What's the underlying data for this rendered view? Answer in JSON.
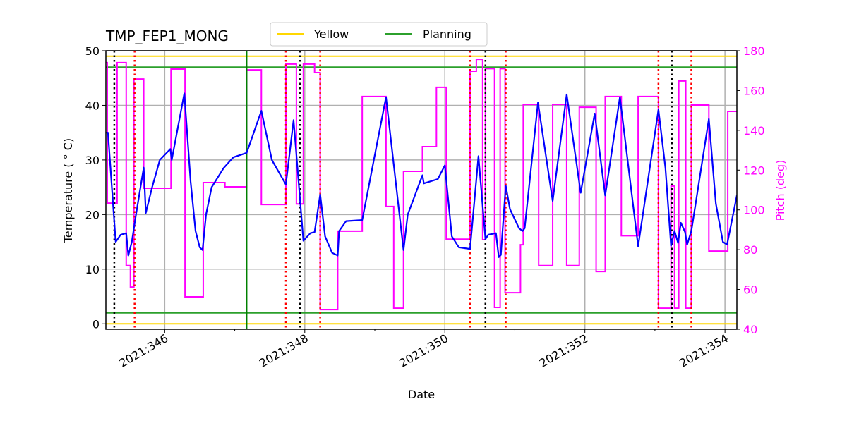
{
  "chart_data": {
    "type": "line",
    "title": "TMP_FEP1_MONG",
    "xlabel": "Date",
    "ylabel": "Temperature ($^\\circ$C)",
    "ylabel_display": "Temperature ( ° C)",
    "y2label": "Pitch (deg)",
    "xlim": [
      345.16,
      354.17
    ],
    "ylim": [
      -1,
      50
    ],
    "y2lim": [
      40,
      180
    ],
    "xticks": [
      346,
      348,
      350,
      352,
      354
    ],
    "xtick_labels": [
      "2021:346",
      "2021:348",
      "2021:350",
      "2021:352",
      "2021:354"
    ],
    "x_minor_ticks": [
      347,
      349,
      351,
      353
    ],
    "yticks": [
      0,
      10,
      20,
      30,
      40,
      50
    ],
    "y2ticks": [
      40,
      60,
      80,
      100,
      120,
      140,
      160,
      180
    ],
    "grid": true,
    "legend": {
      "placement": "top-center",
      "entries": [
        {
          "name": "Yellow",
          "color": "#ffd700"
        },
        {
          "name": "Planning",
          "color": "#2ca02c"
        }
      ]
    },
    "colors": {
      "temperature": "#0000ff",
      "pitch": "#ff00ff",
      "yellow": "#ffd700",
      "planning": "#2ca02c",
      "black_marker": "#000000",
      "red_marker": "#ff0000",
      "y2axis": "#ff00ff"
    },
    "limits": {
      "yellow": [
        49,
        0
      ],
      "planning": [
        47,
        2
      ]
    },
    "planning_vline": [
      347.17
    ],
    "black_dotted_vlines": [
      345.28,
      347.93,
      350.58,
      353.24
    ],
    "red_dotted_vlines": [
      345.57,
      347.73,
      348.22,
      350.36,
      350.87,
      353.05,
      353.52
    ],
    "series": [
      {
        "key": "temperature",
        "axis": "left",
        "points": [
          [
            345.16,
            35
          ],
          [
            345.19,
            35
          ],
          [
            345.3,
            15
          ],
          [
            345.37,
            16.3
          ],
          [
            345.45,
            16.6
          ],
          [
            345.48,
            12.5
          ],
          [
            345.53,
            15
          ],
          [
            345.59,
            20
          ],
          [
            345.7,
            28.6
          ],
          [
            345.73,
            20.3
          ],
          [
            345.82,
            25
          ],
          [
            345.93,
            30
          ],
          [
            346.08,
            32
          ],
          [
            346.1,
            30
          ],
          [
            346.28,
            42.2
          ],
          [
            346.37,
            26
          ],
          [
            346.44,
            17
          ],
          [
            346.5,
            14
          ],
          [
            346.54,
            13.5
          ],
          [
            346.59,
            20
          ],
          [
            346.67,
            25
          ],
          [
            346.84,
            28.5
          ],
          [
            346.98,
            30.5
          ],
          [
            347.17,
            31.3
          ],
          [
            347.38,
            39
          ],
          [
            347.53,
            30
          ],
          [
            347.73,
            25.5
          ],
          [
            347.84,
            37.3
          ],
          [
            347.98,
            15.2
          ],
          [
            348.08,
            16.6
          ],
          [
            348.14,
            16.8
          ],
          [
            348.22,
            23.7
          ],
          [
            348.29,
            16
          ],
          [
            348.39,
            13
          ],
          [
            348.47,
            12.5
          ],
          [
            348.49,
            17
          ],
          [
            348.59,
            18.8
          ],
          [
            348.82,
            19
          ],
          [
            349.16,
            41.5
          ],
          [
            349.41,
            13.5
          ],
          [
            349.47,
            20
          ],
          [
            349.68,
            27.2
          ],
          [
            349.7,
            25.7
          ],
          [
            349.9,
            26.5
          ],
          [
            350.0,
            29
          ],
          [
            350.1,
            16
          ],
          [
            350.2,
            14
          ],
          [
            350.36,
            13.7
          ],
          [
            350.48,
            30.7
          ],
          [
            350.58,
            15.5
          ],
          [
            350.62,
            16.3
          ],
          [
            350.73,
            16.6
          ],
          [
            350.77,
            12.2
          ],
          [
            350.8,
            12.6
          ],
          [
            350.87,
            25.3
          ],
          [
            350.93,
            21
          ],
          [
            351.06,
            17.5
          ],
          [
            351.11,
            17
          ],
          [
            351.14,
            17.5
          ],
          [
            351.33,
            40.5
          ],
          [
            351.54,
            22.5
          ],
          [
            351.74,
            42
          ],
          [
            351.94,
            24
          ],
          [
            352.14,
            38.5
          ],
          [
            352.29,
            23.5
          ],
          [
            352.5,
            41.5
          ],
          [
            352.76,
            14.2
          ],
          [
            353.05,
            39.2
          ],
          [
            353.15,
            28.5
          ],
          [
            353.23,
            14.3
          ],
          [
            353.28,
            17
          ],
          [
            353.33,
            14.8
          ],
          [
            353.37,
            18.5
          ],
          [
            353.43,
            16.8
          ],
          [
            353.46,
            14.5
          ],
          [
            353.52,
            17
          ],
          [
            353.77,
            37.5
          ],
          [
            353.87,
            22
          ],
          [
            353.97,
            15
          ],
          [
            354.03,
            14.5
          ],
          [
            354.17,
            23.5
          ]
        ]
      },
      {
        "key": "pitch",
        "axis": "right",
        "step": "post",
        "points": [
          [
            345.16,
            174
          ],
          [
            345.18,
            103.4
          ],
          [
            345.32,
            174
          ],
          [
            345.45,
            72
          ],
          [
            345.51,
            61.2
          ],
          [
            345.56,
            165.8
          ],
          [
            345.7,
            110.9
          ],
          [
            346.09,
            170.8
          ],
          [
            346.29,
            56.3
          ],
          [
            346.55,
            113.7
          ],
          [
            346.86,
            111.6
          ],
          [
            347.17,
            170.4
          ],
          [
            347.38,
            102.7
          ],
          [
            347.73,
            173.3
          ],
          [
            347.88,
            103
          ],
          [
            347.98,
            173.3
          ],
          [
            348.14,
            169
          ],
          [
            348.22,
            49.9
          ],
          [
            348.47,
            89.3
          ],
          [
            348.82,
            157
          ],
          [
            349.16,
            101.7
          ],
          [
            349.27,
            50.6
          ],
          [
            349.41,
            119.4
          ],
          [
            349.68,
            131.8
          ],
          [
            349.88,
            161.6
          ],
          [
            350.02,
            85.3
          ],
          [
            350.36,
            169.7
          ],
          [
            350.45,
            175.7
          ],
          [
            350.54,
            85
          ],
          [
            350.58,
            171
          ],
          [
            350.71,
            51
          ],
          [
            350.79,
            171
          ],
          [
            350.86,
            58.4
          ],
          [
            351.08,
            82.5
          ],
          [
            351.12,
            153
          ],
          [
            351.34,
            72
          ],
          [
            351.54,
            153
          ],
          [
            351.74,
            72
          ],
          [
            351.92,
            151.6
          ],
          [
            352.16,
            69
          ],
          [
            352.29,
            157
          ],
          [
            352.52,
            87
          ],
          [
            352.76,
            157
          ],
          [
            353.05,
            50.6
          ],
          [
            353.23,
            112
          ],
          [
            353.28,
            50.6
          ],
          [
            353.34,
            164.8
          ],
          [
            353.44,
            50.6
          ],
          [
            353.52,
            152.7
          ],
          [
            353.77,
            79.3
          ],
          [
            354.04,
            149.5
          ],
          [
            354.17,
            149.5
          ]
        ]
      }
    ]
  }
}
